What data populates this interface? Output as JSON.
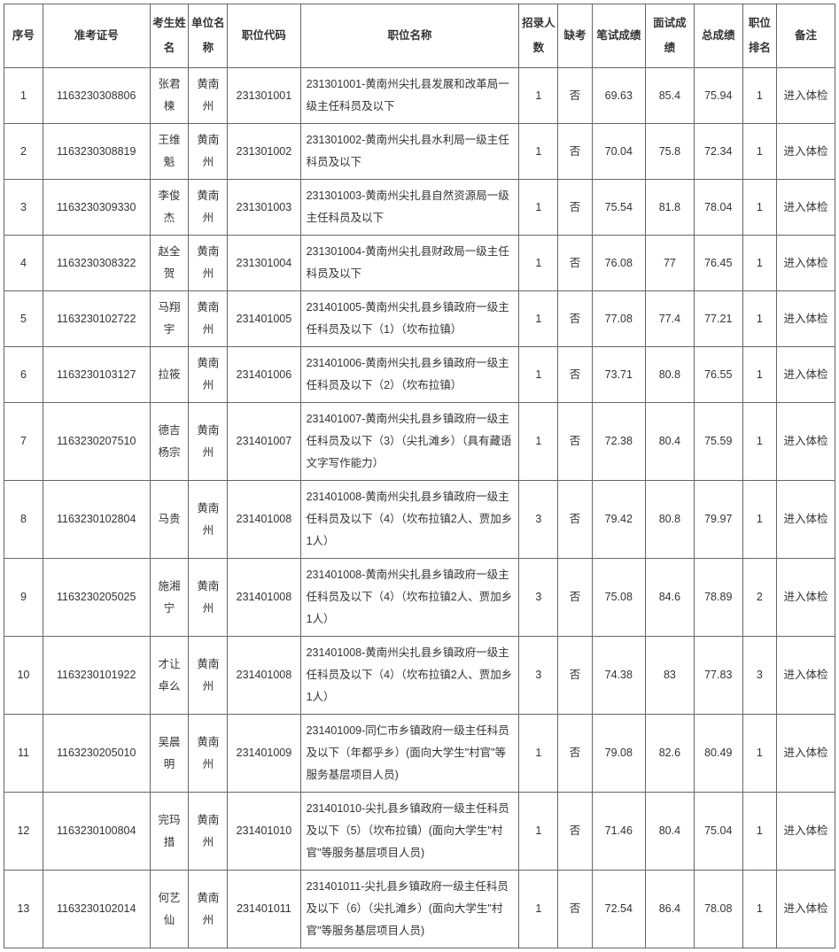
{
  "columns": [
    "序号",
    "准考证号",
    "考生姓名",
    "单位名称",
    "职位代码",
    "职位名称",
    "招录人数",
    "缺考",
    "笔试成绩",
    "面试成绩",
    "总成绩",
    "职位排名",
    "备注"
  ],
  "rows": [
    {
      "seq": "1",
      "exam_id": "1163230308806",
      "candidate_name": "张君楝",
      "unit_name": "黄南州",
      "position_code": "231301001",
      "position_name": "231301001-黄南州尖扎县发展和改革局一级主任科员及以下",
      "recruit_count": "1",
      "absent": "否",
      "written_score": "69.63",
      "interview_score": "85.4",
      "total_score": "75.94",
      "rank": "1",
      "remark": "进入体检"
    },
    {
      "seq": "2",
      "exam_id": "1163230308819",
      "candidate_name": "王维魁",
      "unit_name": "黄南州",
      "position_code": "231301002",
      "position_name": "231301002-黄南州尖扎县水利局一级主任科员及以下",
      "recruit_count": "1",
      "absent": "否",
      "written_score": "70.04",
      "interview_score": "75.8",
      "total_score": "72.34",
      "rank": "1",
      "remark": "进入体检"
    },
    {
      "seq": "3",
      "exam_id": "1163230309330",
      "candidate_name": "李俊杰",
      "unit_name": "黄南州",
      "position_code": "231301003",
      "position_name": "231301003-黄南州尖扎县自然资源局一级主任科员及以下",
      "recruit_count": "1",
      "absent": "否",
      "written_score": "75.54",
      "interview_score": "81.8",
      "total_score": "78.04",
      "rank": "1",
      "remark": "进入体检"
    },
    {
      "seq": "4",
      "exam_id": "1163230308322",
      "candidate_name": "赵全贺",
      "unit_name": "黄南州",
      "position_code": "231301004",
      "position_name": "231301004-黄南州尖扎县财政局一级主任科员及以下",
      "recruit_count": "1",
      "absent": "否",
      "written_score": "76.08",
      "interview_score": "77",
      "total_score": "76.45",
      "rank": "1",
      "remark": "进入体检"
    },
    {
      "seq": "5",
      "exam_id": "1163230102722",
      "candidate_name": "马翔宇",
      "unit_name": "黄南州",
      "position_code": "231401005",
      "position_name": "231401005-黄南州尖扎县乡镇政府一级主任科员及以下（1）（坎布拉镇）",
      "recruit_count": "1",
      "absent": "否",
      "written_score": "77.08",
      "interview_score": "77.4",
      "total_score": "77.21",
      "rank": "1",
      "remark": "进入体检"
    },
    {
      "seq": "6",
      "exam_id": "1163230103127",
      "candidate_name": "拉筱",
      "unit_name": "黄南州",
      "position_code": "231401006",
      "position_name": "231401006-黄南州尖扎县乡镇政府一级主任科员及以下（2）（坎布拉镇）",
      "recruit_count": "1",
      "absent": "否",
      "written_score": "73.71",
      "interview_score": "80.8",
      "total_score": "76.55",
      "rank": "1",
      "remark": "进入体检"
    },
    {
      "seq": "7",
      "exam_id": "1163230207510",
      "candidate_name": "德吉杨宗",
      "unit_name": "黄南州",
      "position_code": "231401007",
      "position_name": "231401007-黄南州尖扎县乡镇政府一级主任科员及以下（3）（尖扎滩乡）（具有藏语文字写作能力）",
      "recruit_count": "1",
      "absent": "否",
      "written_score": "72.38",
      "interview_score": "80.4",
      "total_score": "75.59",
      "rank": "1",
      "remark": "进入体检"
    },
    {
      "seq": "8",
      "exam_id": "1163230102804",
      "candidate_name": "马贵",
      "unit_name": "黄南州",
      "position_code": "231401008",
      "position_name": "231401008-黄南州尖扎县乡镇政府一级主任科员及以下（4）（坎布拉镇2人、贾加乡1人）",
      "recruit_count": "3",
      "absent": "否",
      "written_score": "79.42",
      "interview_score": "80.8",
      "total_score": "79.97",
      "rank": "1",
      "remark": "进入体检"
    },
    {
      "seq": "9",
      "exam_id": "1163230205025",
      "candidate_name": "施湘宁",
      "unit_name": "黄南州",
      "position_code": "231401008",
      "position_name": "231401008-黄南州尖扎县乡镇政府一级主任科员及以下（4）（坎布拉镇2人、贾加乡1人）",
      "recruit_count": "3",
      "absent": "否",
      "written_score": "75.08",
      "interview_score": "84.6",
      "total_score": "78.89",
      "rank": "2",
      "remark": "进入体检"
    },
    {
      "seq": "10",
      "exam_id": "1163230101922",
      "candidate_name": "才让卓么",
      "unit_name": "黄南州",
      "position_code": "231401008",
      "position_name": "231401008-黄南州尖扎县乡镇政府一级主任科员及以下（4）（坎布拉镇2人、贾加乡1人）",
      "recruit_count": "3",
      "absent": "否",
      "written_score": "74.38",
      "interview_score": "83",
      "total_score": "77.83",
      "rank": "3",
      "remark": "进入体检"
    },
    {
      "seq": "11",
      "exam_id": "1163230205010",
      "candidate_name": "吴晨明",
      "unit_name": "黄南州",
      "position_code": "231401009",
      "position_name": "231401009-同仁市乡镇政府一级主任科员及以下（年都乎乡）(面向大学生\"村官\"等服务基层项目人员)",
      "recruit_count": "1",
      "absent": "否",
      "written_score": "79.08",
      "interview_score": "82.6",
      "total_score": "80.49",
      "rank": "1",
      "remark": "进入体检"
    },
    {
      "seq": "12",
      "exam_id": "1163230100804",
      "candidate_name": "完玛措",
      "unit_name": "黄南州",
      "position_code": "231401010",
      "position_name": "231401010-尖扎县乡镇政府一级主任科员及以下（5）（坎布拉镇）(面向大学生\"村官\"等服务基层项目人员)",
      "recruit_count": "1",
      "absent": "否",
      "written_score": "71.46",
      "interview_score": "80.4",
      "total_score": "75.04",
      "rank": "1",
      "remark": "进入体检"
    },
    {
      "seq": "13",
      "exam_id": "1163230102014",
      "candidate_name": "何艺仙",
      "unit_name": "黄南州",
      "position_code": "231401011",
      "position_name": "231401011-尖扎县乡镇政府一级主任科员及以下（6）（尖扎滩乡）(面向大学生\"村官\"等服务基层项目人员)",
      "recruit_count": "1",
      "absent": "否",
      "written_score": "72.54",
      "interview_score": "86.4",
      "total_score": "78.08",
      "rank": "1",
      "remark": "进入体检"
    }
  ]
}
